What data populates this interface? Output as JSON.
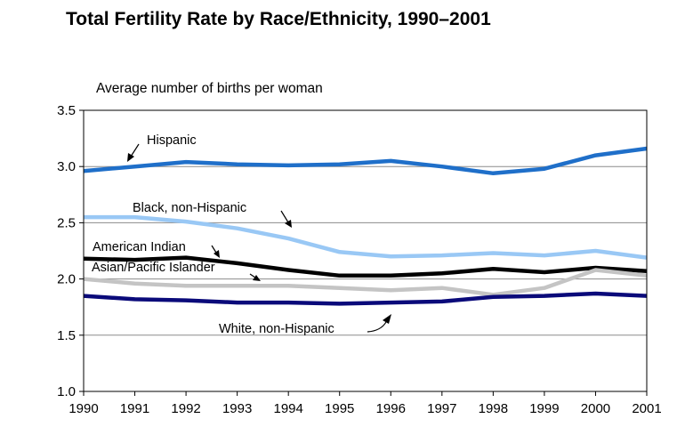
{
  "chart_data": {
    "type": "line",
    "title": "Total Fertility Rate by Race/Ethnicity, 1990–2001",
    "ylabel": "Average number of births per woman",
    "xlabel": "",
    "x": [
      1990,
      1991,
      1992,
      1993,
      1994,
      1995,
      1996,
      1997,
      1998,
      1999,
      2000,
      2001
    ],
    "xticks": [
      "1990",
      "1991",
      "1992",
      "1993",
      "1994",
      "1995",
      "1996",
      "1997",
      "1998",
      "1999",
      "2000",
      "2001"
    ],
    "yticks": [
      "1.0",
      "1.5",
      "2.0",
      "2.5",
      "3.0",
      "3.5"
    ],
    "ylim": [
      1.0,
      3.5
    ],
    "grid": true,
    "series": [
      {
        "name": "Hispanic",
        "color": "#1f6fc9",
        "values": [
          2.96,
          3.0,
          3.04,
          3.02,
          3.01,
          3.02,
          3.05,
          3.0,
          2.94,
          2.98,
          3.1,
          3.16
        ]
      },
      {
        "name": "Black, non-Hispanic",
        "color": "#99c8f5",
        "values": [
          2.55,
          2.55,
          2.51,
          2.45,
          2.36,
          2.24,
          2.2,
          2.21,
          2.23,
          2.21,
          2.25,
          2.19
        ]
      },
      {
        "name": "American Indian",
        "color": "#000000",
        "values": [
          2.18,
          2.17,
          2.19,
          2.14,
          2.08,
          2.03,
          2.03,
          2.05,
          2.09,
          2.06,
          2.1,
          2.07
        ]
      },
      {
        "name": "Asian/Pacific Islander",
        "color": "#c4c4c4",
        "values": [
          2.0,
          1.96,
          1.94,
          1.94,
          1.94,
          1.92,
          1.9,
          1.92,
          1.86,
          1.92,
          2.08,
          2.03
        ]
      },
      {
        "name": "White, non-Hispanic",
        "color": "#0a0a7a",
        "values": [
          1.85,
          1.82,
          1.81,
          1.79,
          1.79,
          1.78,
          1.79,
          1.8,
          1.84,
          1.85,
          1.87,
          1.85
        ]
      }
    ]
  }
}
